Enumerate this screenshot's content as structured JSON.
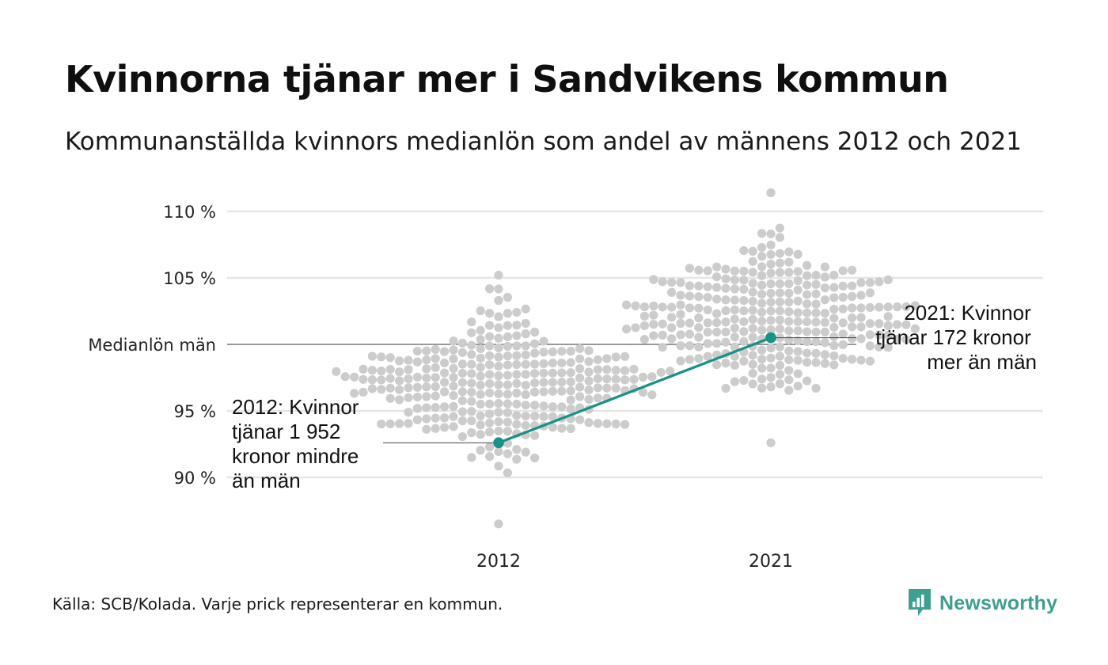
{
  "title": "Kvinnorna tjänar mer i Sandvikens kommun",
  "subtitle": "Kommunanställda kvinnors medianlön som andel av männens 2012 och 2021",
  "source": "Källa: SCB/Kolada. Varje prick representerar en kommun.",
  "brand": "Newsworthy",
  "colors": {
    "highlight": "#169286",
    "dots": "#cccccc",
    "grid": "#e6e6e6",
    "reference_line": "#333333",
    "brand": "#3e9e90"
  },
  "chart_data": {
    "type": "scatter",
    "title": "Kvinnorna tjänar mer i Sandvikens kommun",
    "subtitle": "Kommunanställda kvinnors medianlön som andel av männens 2012 och 2021",
    "categories": [
      "2012",
      "2021"
    ],
    "y_unit": "%",
    "ylim": [
      86,
      111.5
    ],
    "y_ticks": [
      {
        "value": 90,
        "label": "90 %"
      },
      {
        "value": 95,
        "label": "95 %"
      },
      {
        "value": 100,
        "label": "Medianlön män"
      },
      {
        "value": 105,
        "label": "105 %"
      },
      {
        "value": 110,
        "label": "110 %"
      }
    ],
    "grid": true,
    "reference_line": {
      "value": 100,
      "label": "Medianlön män"
    },
    "distribution": {
      "description_dots": "Varje prick representerar en kommun.",
      "2012": {
        "center": 97.0,
        "sd": 2.6,
        "min": 86.5,
        "max": 105.2
      },
      "2021": {
        "center": 101.8,
        "sd": 2.7,
        "min": 92.6,
        "max": 111.4
      }
    },
    "highlight": {
      "values": [
        {
          "category": "2012",
          "value": 92.6
        },
        {
          "category": "2021",
          "value": 100.5
        }
      ],
      "annotations": [
        {
          "category": "2012",
          "lines": [
            "2012: Kvinnor",
            "tjänar 1 952",
            "kronor mindre",
            "än män"
          ]
        },
        {
          "category": "2021",
          "lines": [
            "2021: Kvinnor",
            "tjänar 172 kronor",
            "mer än män"
          ]
        }
      ]
    }
  }
}
